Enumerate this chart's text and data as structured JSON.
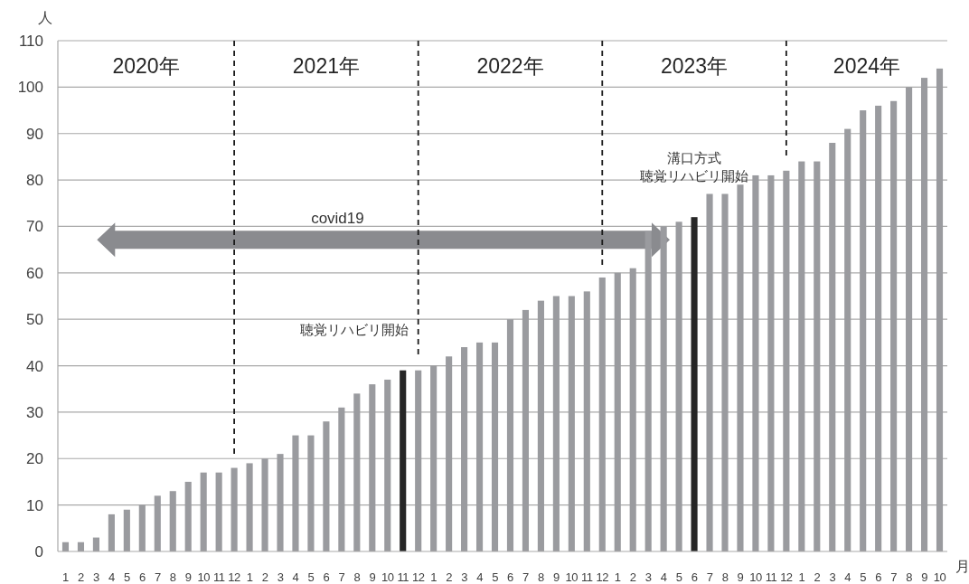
{
  "chart_data": {
    "type": "bar",
    "ylabel": "人",
    "xlabel": "月",
    "x": [
      "2020-01",
      "2020-02",
      "2020-03",
      "2020-04",
      "2020-05",
      "2020-06",
      "2020-07",
      "2020-08",
      "2020-09",
      "2020-10",
      "2020-11",
      "2020-12",
      "2021-01",
      "2021-02",
      "2021-03",
      "2021-04",
      "2021-05",
      "2021-06",
      "2021-07",
      "2021-08",
      "2021-09",
      "2021-10",
      "2021-11",
      "2021-12",
      "2022-01",
      "2022-02",
      "2022-03",
      "2022-04",
      "2022-05",
      "2022-06",
      "2022-07",
      "2022-08",
      "2022-09",
      "2022-10",
      "2022-11",
      "2022-12",
      "2023-01",
      "2023-02",
      "2023-03",
      "2023-04",
      "2023-05",
      "2023-06",
      "2023-07",
      "2023-08",
      "2023-09",
      "2023-10",
      "2023-11",
      "2023-12",
      "2024-01",
      "2024-02",
      "2024-03",
      "2024-04",
      "2024-05",
      "2024-06",
      "2024-07",
      "2024-08",
      "2024-09",
      "2024-10"
    ],
    "values": [
      2,
      2,
      3,
      8,
      9,
      10,
      12,
      13,
      15,
      17,
      17,
      18,
      19,
      20,
      21,
      25,
      25,
      28,
      31,
      34,
      36,
      37,
      39,
      39,
      40,
      42,
      44,
      45,
      45,
      50,
      52,
      54,
      55,
      55,
      56,
      59,
      60,
      61,
      69,
      70,
      71,
      72,
      77,
      77,
      79,
      81,
      81,
      82,
      84,
      84,
      88,
      91,
      95,
      96,
      97,
      100,
      102,
      104
    ],
    "colors": [
      "#9a9b9f",
      "#9a9b9f",
      "#9a9b9f",
      "#9a9b9f",
      "#9a9b9f",
      "#9a9b9f",
      "#9a9b9f",
      "#9a9b9f",
      "#9a9b9f",
      "#9a9b9f",
      "#9a9b9f",
      "#9a9b9f",
      "#9a9b9f",
      "#9a9b9f",
      "#9a9b9f",
      "#9a9b9f",
      "#9a9b9f",
      "#9a9b9f",
      "#9a9b9f",
      "#9a9b9f",
      "#9a9b9f",
      "#9a9b9f",
      "#262626",
      "#9a9b9f",
      "#9a9b9f",
      "#9a9b9f",
      "#9a9b9f",
      "#9a9b9f",
      "#9a9b9f",
      "#9a9b9f",
      "#9a9b9f",
      "#9a9b9f",
      "#9a9b9f",
      "#9a9b9f",
      "#9a9b9f",
      "#9a9b9f",
      "#9a9b9f",
      "#9a9b9f",
      "#9a9b9f",
      "#9a9b9f",
      "#9a9b9f",
      "#262626",
      "#9a9b9f",
      "#9a9b9f",
      "#9a9b9f",
      "#9a9b9f",
      "#9a9b9f",
      "#9a9b9f",
      "#9a9b9f",
      "#9a9b9f",
      "#9a9b9f",
      "#9a9b9f",
      "#9a9b9f",
      "#9a9b9f",
      "#9a9b9f",
      "#9a9b9f",
      "#9a9b9f",
      "#9a9b9f"
    ],
    "xlim": [
      "2019-12-16",
      "2024-10-16"
    ],
    "xticks": [
      {
        "value": "2020-01",
        "label": "1"
      },
      {
        "value": "2020-02",
        "label": "2"
      },
      {
        "value": "2020-03",
        "label": "3"
      },
      {
        "value": "2020-04",
        "label": "4"
      },
      {
        "value": "2020-05",
        "label": "5"
      },
      {
        "value": "2020-06",
        "label": "6"
      },
      {
        "value": "2020-07",
        "label": "7"
      },
      {
        "value": "2020-08",
        "label": "8"
      },
      {
        "value": "2020-09",
        "label": "9"
      },
      {
        "value": "2020-10",
        "label": "10"
      },
      {
        "value": "2020-11",
        "label": "11"
      },
      {
        "value": "2020-12",
        "label": "12"
      },
      {
        "value": "2021-01",
        "label": "1"
      },
      {
        "value": "2021-02",
        "label": "2"
      },
      {
        "value": "2021-03",
        "label": "3"
      },
      {
        "value": "2021-04",
        "label": "4"
      },
      {
        "value": "2021-05",
        "label": "5"
      },
      {
        "value": "2021-06",
        "label": "6"
      },
      {
        "value": "2021-07",
        "label": "7"
      },
      {
        "value": "2021-08",
        "label": "8"
      },
      {
        "value": "2021-09",
        "label": "9"
      },
      {
        "value": "2021-10",
        "label": "10"
      },
      {
        "value": "2021-11",
        "label": "11"
      },
      {
        "value": "2021-12",
        "label": "12"
      },
      {
        "value": "2022-01",
        "label": "1"
      },
      {
        "value": "2022-02",
        "label": "2"
      },
      {
        "value": "2022-03",
        "label": "3"
      },
      {
        "value": "2022-04",
        "label": "4"
      },
      {
        "value": "2022-05",
        "label": "5"
      },
      {
        "value": "2022-06",
        "label": "6"
      },
      {
        "value": "2022-07",
        "label": "7"
      },
      {
        "value": "2022-08",
        "label": "8"
      },
      {
        "value": "2022-09",
        "label": "9"
      },
      {
        "value": "2022-10",
        "label": "10"
      },
      {
        "value": "2022-11",
        "label": "11"
      },
      {
        "value": "2022-12",
        "label": "12"
      },
      {
        "value": "2023-01",
        "label": "1"
      },
      {
        "value": "2023-02",
        "label": "2"
      },
      {
        "value": "2023-03",
        "label": "3"
      },
      {
        "value": "2023-04",
        "label": "4"
      },
      {
        "value": "2023-05",
        "label": "5"
      },
      {
        "value": "2023-06",
        "label": "6"
      },
      {
        "value": "2023-07",
        "label": "7"
      },
      {
        "value": "2023-08",
        "label": "8"
      },
      {
        "value": "2023-09",
        "label": "9"
      },
      {
        "value": "2023-10",
        "label": "10"
      },
      {
        "value": "2023-11",
        "label": "11"
      },
      {
        "value": "2023-12",
        "label": "12"
      },
      {
        "value": "2024-01",
        "label": "1"
      },
      {
        "value": "2024-02",
        "label": "2"
      },
      {
        "value": "2024-03",
        "label": "3"
      },
      {
        "value": "2024-04",
        "label": "4"
      },
      {
        "value": "2024-05",
        "label": "5"
      },
      {
        "value": "2024-06",
        "label": "6"
      },
      {
        "value": "2024-07",
        "label": "7"
      },
      {
        "value": "2024-08",
        "label": "8"
      },
      {
        "value": "2024-09",
        "label": "9"
      },
      {
        "value": "2024-10",
        "label": "10"
      }
    ],
    "ylim": [
      0,
      110
    ],
    "yticks": [
      0,
      10,
      20,
      30,
      40,
      50,
      60,
      70,
      80,
      90,
      100,
      110
    ],
    "grid": "y",
    "ref_lines": [
      {
        "axis": "x",
        "value": "2020-12",
        "line_style": "dashed",
        "color": "#1a1a1a"
      },
      {
        "axis": "x",
        "value": "2021-12",
        "line_style": "dashed",
        "color": "#1a1a1a"
      },
      {
        "axis": "x",
        "value": "2022-12",
        "line_style": "dashed",
        "color": "#1a1a1a"
      },
      {
        "axis": "x",
        "value": "2023-12",
        "line_style": "dashed",
        "color": "#1a1a1a"
      }
    ],
    "annotations": [
      "2020年",
      "2021年",
      "2022年",
      "2023年",
      "2024年",
      {
        "text": "covid19"
      },
      {
        "text": "聴覚リハビリ開始",
        "x": "2021-11",
        "y": 39
      },
      {
        "text": "聴覚リハビリ開始",
        "x": "2023-06",
        "y": 72
      },
      "溝口方式"
    ]
  }
}
